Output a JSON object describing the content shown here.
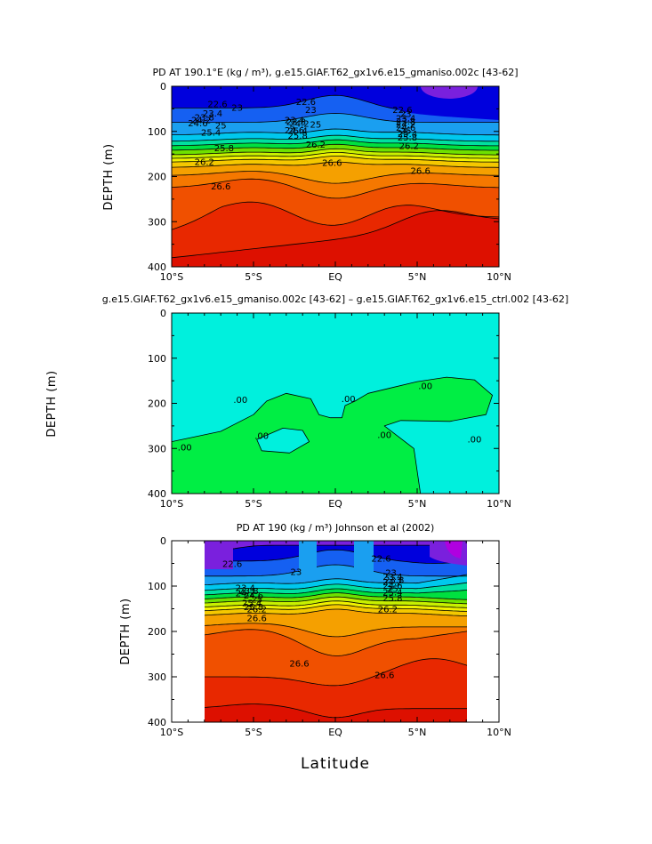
{
  "chart_data": [
    {
      "type": "contour",
      "title": "PD AT 190.1°E (kg / m³), g.e15.GIAF.T62_gx1v6.e15_gmaniso.002c [43-62]",
      "ylabel": "DEPTH (m)",
      "xlabel": "",
      "x_ticks": [
        "10°S",
        "5°S",
        "EQ",
        "5°N",
        "10°N"
      ],
      "y_ticks": [
        "0",
        "100",
        "200",
        "300",
        "400"
      ],
      "xlim": [
        -10,
        10
      ],
      "ylim": [
        400,
        0
      ],
      "contour_labels": [
        "22.6",
        "23",
        "23.4",
        "23.8",
        "24.2",
        "24.6",
        "25",
        "25.4",
        "25.8",
        "26.2",
        "26.6"
      ],
      "colors": [
        "#0000dd",
        "#1560f2",
        "#1a9ff0",
        "#00c8ee",
        "#00e0a0",
        "#00e040",
        "#6ee000",
        "#c8f000",
        "#f0f000",
        "#f5c800",
        "#f5a000",
        "#f57800",
        "#f05000",
        "#e82800",
        "#dd1000",
        "#c40a00"
      ]
    },
    {
      "type": "contour",
      "title": "g.e15.GIAF.T62_gx1v6.e15_gmaniso.002c [43-62] – g.e15.GIAF.T62_gx1v6.e15_ctrl.002 [43-62]",
      "ylabel": "DEPTH (m)",
      "xlabel": "",
      "x_ticks": [
        "10°S",
        "5°S",
        "EQ",
        "5°N",
        "10°N"
      ],
      "y_ticks": [
        "0",
        "100",
        "200",
        "300",
        "400"
      ],
      "xlim": [
        -10,
        10
      ],
      "ylim": [
        400,
        0
      ],
      "contour_labels": [
        ".00"
      ],
      "colors": [
        "#00f0dd",
        "#00ee44"
      ]
    },
    {
      "type": "contour",
      "title": "PD AT 190 (kg / m³) Johnson et al (2002)",
      "ylabel": "DEPTH (m)",
      "xlabel": "Latitude",
      "x_ticks": [
        "10°S",
        "5°S",
        "EQ",
        "5°N",
        "10°N"
      ],
      "y_ticks": [
        "0",
        "100",
        "200",
        "300",
        "400"
      ],
      "xlim": [
        -10,
        10
      ],
      "ylim": [
        400,
        0
      ],
      "data_extent_lat": [
        -8,
        8
      ],
      "contour_labels": [
        "22.6",
        "23",
        "23.4",
        "23.8",
        "24.2",
        "24.6",
        "25",
        "25.4",
        "25.8",
        "26.2",
        "26.6"
      ],
      "colors": [
        "#7a20dd",
        "#0000dd",
        "#1560f2",
        "#1a9ff0",
        "#00c8ee",
        "#00e0a0",
        "#00e040",
        "#6ee000",
        "#c8f000",
        "#f0f000",
        "#f5c800",
        "#f5a000",
        "#f57800",
        "#f05000",
        "#e82800",
        "#dd1000",
        "#c40a00"
      ]
    }
  ]
}
